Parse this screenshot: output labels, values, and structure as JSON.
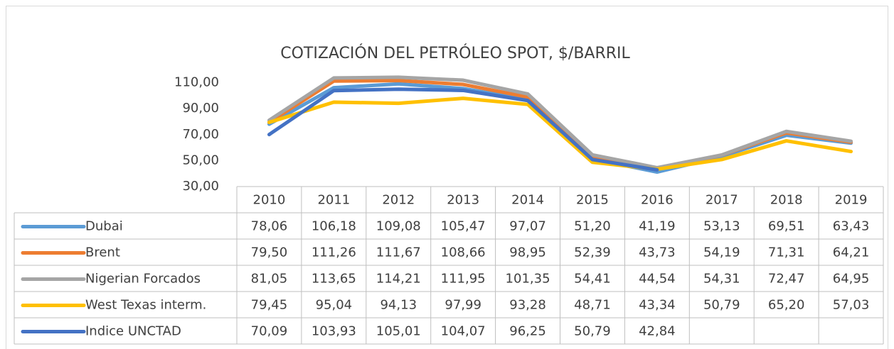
{
  "chart_data": {
    "type": "line",
    "title": "COTIZACIÓN DEL PETRÓLEO SPOT, $/BARRIL",
    "categories": [
      "2010",
      "2011",
      "2012",
      "2013",
      "2014",
      "2015",
      "2016",
      "2017",
      "2018",
      "2019"
    ],
    "ylim": [
      30,
      115
    ],
    "yticks": [
      {
        "value": 30,
        "label": "30,00"
      },
      {
        "value": 50,
        "label": "50,00"
      },
      {
        "value": 70,
        "label": "70,00"
      },
      {
        "value": 90,
        "label": "90,00"
      },
      {
        "value": 110,
        "label": "110,00"
      }
    ],
    "series": [
      {
        "name": "Dubai",
        "color": "#5b9bd5",
        "values": [
          78.06,
          106.18,
          109.08,
          105.47,
          97.07,
          51.2,
          41.19,
          53.13,
          69.51,
          63.43
        ],
        "value_labels": [
          "78,06",
          "106,18",
          "109,08",
          "105,47",
          "97,07",
          "51,20",
          "41,19",
          "53,13",
          "69,51",
          "63,43"
        ]
      },
      {
        "name": "Brent",
        "color": "#ed7d31",
        "values": [
          79.5,
          111.26,
          111.67,
          108.66,
          98.95,
          52.39,
          43.73,
          54.19,
          71.31,
          64.21
        ],
        "value_labels": [
          "79,50",
          "111,26",
          "111,67",
          "108,66",
          "98,95",
          "52,39",
          "43,73",
          "54,19",
          "71,31",
          "64,21"
        ]
      },
      {
        "name": "Nigerian Forcados",
        "color": "#a5a5a5",
        "values": [
          81.05,
          113.65,
          114.21,
          111.95,
          101.35,
          54.41,
          44.54,
          54.31,
          72.47,
          64.95
        ],
        "value_labels": [
          "81,05",
          "113,65",
          "114,21",
          "111,95",
          "101,35",
          "54,41",
          "44,54",
          "54,31",
          "72,47",
          "64,95"
        ]
      },
      {
        "name": "West Texas interm.",
        "color": "#ffc000",
        "values": [
          79.45,
          95.04,
          94.13,
          97.99,
          93.28,
          48.71,
          43.34,
          50.79,
          65.2,
          57.03
        ],
        "value_labels": [
          "79,45",
          "95,04",
          "94,13",
          "97,99",
          "93,28",
          "48,71",
          "43,34",
          "50,79",
          "65,20",
          "57,03"
        ]
      },
      {
        "name": "Indice UNCTAD",
        "color": "#4472c4",
        "values": [
          70.09,
          103.93,
          105.01,
          104.07,
          96.25,
          50.79,
          42.84,
          null,
          null,
          null
        ],
        "value_labels": [
          "70,09",
          "103,93",
          "105,01",
          "104,07",
          "96,25",
          "50,79",
          "42,84",
          null,
          null,
          null
        ]
      }
    ]
  }
}
